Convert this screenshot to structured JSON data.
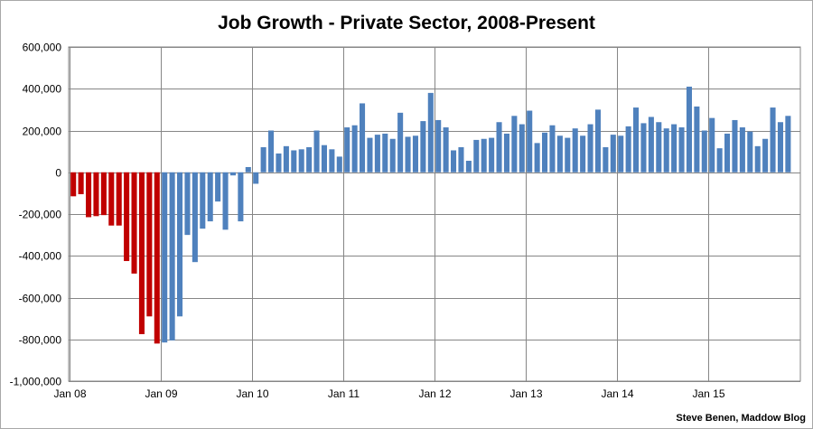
{
  "chart_data": {
    "type": "bar",
    "title": "Job Growth - Private Sector, 2008-Present",
    "credit": "Steve Benen, Maddow Blog",
    "xlabel": "",
    "ylabel": "",
    "ylim": [
      -1000000,
      600000
    ],
    "yticks": [
      600000,
      400000,
      200000,
      0,
      -200000,
      -400000,
      -600000,
      -800000,
      -1000000
    ],
    "ytick_labels": [
      "600,000",
      "400,000",
      "200,000",
      "0",
      "-200,000",
      "-400,000",
      "-600,000",
      "-800,000",
      "-1,000,000"
    ],
    "xtick_labels": [
      "Jan 08",
      "Jan 09",
      "Jan 10",
      "Jan 11",
      "Jan 12",
      "Jan 13",
      "Jan 14",
      "Jan 15"
    ],
    "grid": true,
    "colors": {
      "red_series": "#c00000",
      "blue_series": "#4f81bd",
      "grid": "#868686"
    },
    "series": [
      {
        "color": "red",
        "start_month_index": 0,
        "values": [
          -115000,
          -105000,
          -215000,
          -210000,
          -205000,
          -255000,
          -255000,
          -425000,
          -485000,
          -775000,
          -690000,
          -820000
        ]
      },
      {
        "color": "blue",
        "start_month_index": 12,
        "values": [
          -815000,
          -805000,
          -690000,
          -300000,
          -430000,
          -270000,
          -235000,
          -140000,
          -275000,
          -15000,
          -235000,
          25000,
          -55000,
          120000,
          200000,
          90000,
          125000,
          105000,
          110000,
          120000,
          200000,
          130000,
          110000,
          75000,
          215000,
          225000,
          330000,
          165000,
          180000,
          185000,
          160000,
          285000,
          170000,
          175000,
          245000,
          380000,
          250000,
          215000,
          105000,
          120000,
          55000,
          155000,
          160000,
          165000,
          240000,
          185000,
          270000,
          230000,
          295000,
          140000,
          190000,
          225000,
          175000,
          165000,
          210000,
          175000,
          230000,
          300000,
          120000,
          180000,
          175000,
          220000,
          310000,
          235000,
          265000,
          240000,
          210000,
          230000,
          215000,
          410000,
          315000,
          200000,
          260000,
          115000,
          185000,
          250000,
          215000,
          195000,
          125000,
          160000,
          310000,
          240000,
          270000
        ]
      }
    ]
  }
}
